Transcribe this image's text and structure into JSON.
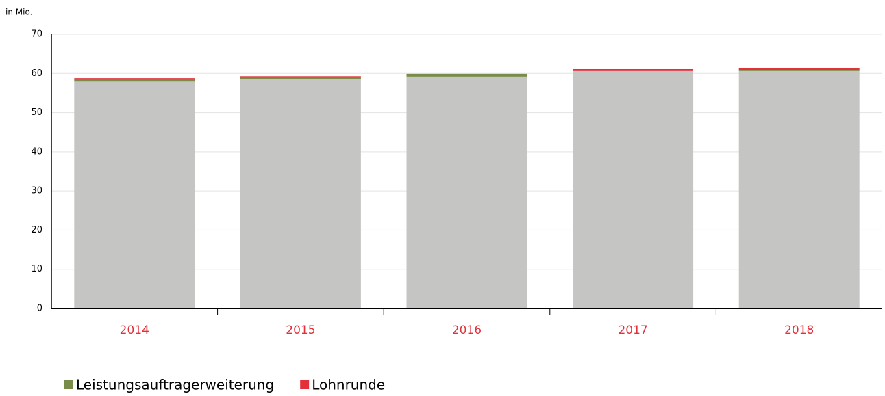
{
  "chart_data": {
    "type": "stacked_bar",
    "y_label": "in Mio.",
    "categories": [
      "2014",
      "2015",
      "2016",
      "2017",
      "2018"
    ],
    "series": [
      {
        "color": "#c5c6c4",
        "values": [
          57.9,
          58.6,
          59.2,
          60.6,
          60.6
        ]
      },
      {
        "name": "Leistungsauftragerweiterung",
        "color": "#7a8c4a",
        "values": [
          0.5,
          0.3,
          0.7,
          0,
          0.3
        ]
      },
      {
        "name": "Lohnrunde",
        "color": "#e2313b",
        "values": [
          0.4,
          0.4,
          0,
          0.5,
          0.5
        ]
      }
    ],
    "ylim": [
      0,
      70
    ],
    "yticks": [
      0,
      10,
      20,
      30,
      40,
      50,
      60,
      70
    ],
    "grid": true,
    "category_color": "#e2313b"
  }
}
